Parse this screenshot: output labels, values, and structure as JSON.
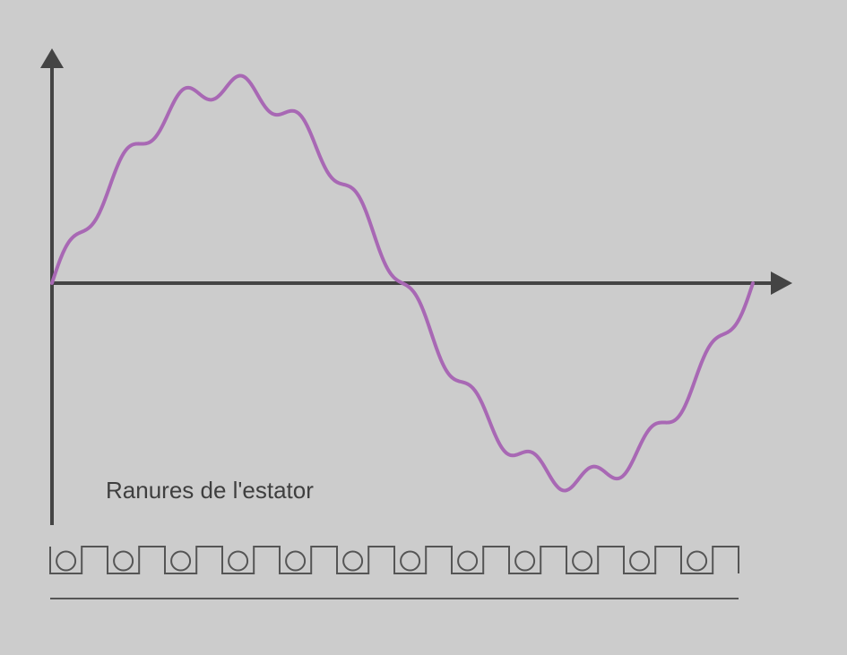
{
  "diagram": {
    "label": "Ranures de l'estator",
    "colors": {
      "background": "#cccccc",
      "axes": "#444444",
      "waveform": "#a868b4",
      "slots": "#555555"
    },
    "slot_count": 12,
    "waveform": {
      "fundamental_amplitude": 1.0,
      "ripple_harmonic": 12,
      "ripple_amplitude": 0.06,
      "cycles": 1
    }
  }
}
